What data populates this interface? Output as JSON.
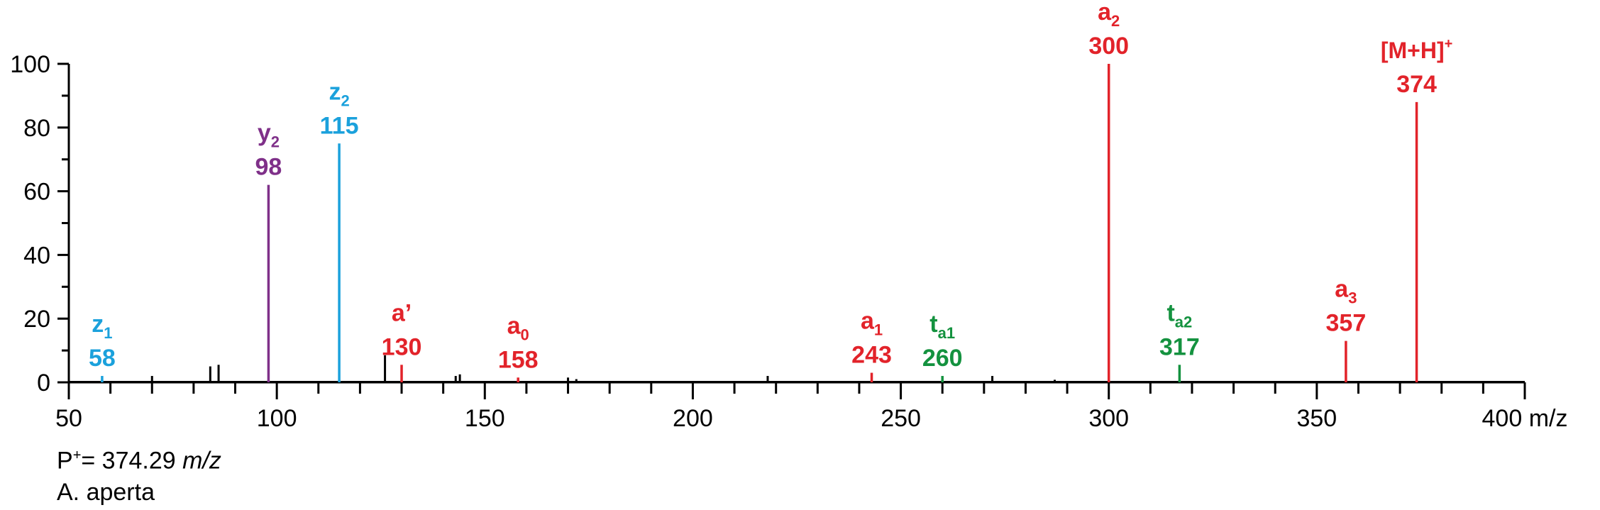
{
  "chart_data": {
    "type": "bar",
    "xlabel": "m/z",
    "ylabel": "",
    "xlim": [
      50,
      400
    ],
    "ylim": [
      0,
      100
    ],
    "x_ticks": [
      50,
      100,
      150,
      200,
      250,
      300,
      350,
      400
    ],
    "y_ticks": [
      0,
      20,
      40,
      60,
      80,
      100
    ],
    "colors": {
      "black": "#000000",
      "red": "#e2232a",
      "blue": "#1ba1dc",
      "purple": "#7f3089",
      "green": "#14923f"
    },
    "labeled_peaks": [
      {
        "mz": 58,
        "intensity": 2,
        "ion": "z",
        "sub": "1",
        "sup": "",
        "value": "58",
        "color": "blue"
      },
      {
        "mz": 98,
        "intensity": 62,
        "ion": "y",
        "sub": "2",
        "sup": "",
        "value": "98",
        "color": "purple"
      },
      {
        "mz": 115,
        "intensity": 75,
        "ion": "z",
        "sub": "2",
        "sup": "",
        "value": "115",
        "color": "blue"
      },
      {
        "mz": 130,
        "intensity": 5.5,
        "ion": "a’",
        "sub": "",
        "sup": "",
        "value": "130",
        "color": "red"
      },
      {
        "mz": 158,
        "intensity": 1.5,
        "ion": "a",
        "sub": "0",
        "sup": "",
        "value": "158",
        "color": "red"
      },
      {
        "mz": 243,
        "intensity": 3,
        "ion": "a",
        "sub": "1",
        "sup": "",
        "value": "243",
        "color": "red"
      },
      {
        "mz": 260,
        "intensity": 2,
        "ion": "t",
        "sub": "a1",
        "sup": "",
        "value": "260",
        "color": "green"
      },
      {
        "mz": 300,
        "intensity": 100,
        "ion": "a",
        "sub": "2",
        "sup": "",
        "value": "300",
        "color": "red"
      },
      {
        "mz": 317,
        "intensity": 5.5,
        "ion": "t",
        "sub": "a2",
        "sup": "",
        "value": "317",
        "color": "green"
      },
      {
        "mz": 357,
        "intensity": 13,
        "ion": "a",
        "sub": "3",
        "sup": "",
        "value": "357",
        "color": "red"
      },
      {
        "mz": 374,
        "intensity": 88,
        "ion": "[M+H]",
        "sub": "",
        "sup": "+",
        "value": "374",
        "color": "red"
      }
    ],
    "unlabeled_peaks": [
      {
        "mz": 70,
        "intensity": 2
      },
      {
        "mz": 84,
        "intensity": 5
      },
      {
        "mz": 86,
        "intensity": 5.5
      },
      {
        "mz": 126,
        "intensity": 8.5
      },
      {
        "mz": 143,
        "intensity": 2
      },
      {
        "mz": 144,
        "intensity": 2.5
      },
      {
        "mz": 170,
        "intensity": 1.5
      },
      {
        "mz": 172,
        "intensity": 1
      },
      {
        "mz": 218,
        "intensity": 2
      },
      {
        "mz": 272,
        "intensity": 2
      },
      {
        "mz": 287,
        "intensity": 0.8
      }
    ]
  },
  "caption": {
    "precursor_prefix": "P",
    "precursor_sup": "+",
    "precursor_eq": "= 374.29 ",
    "precursor_unit": "m/z",
    "species": "A. aperta"
  }
}
